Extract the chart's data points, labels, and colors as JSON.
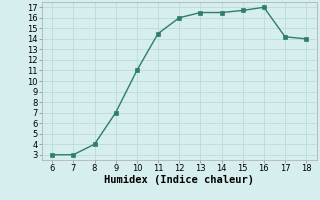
{
  "x": [
    6,
    7,
    8,
    9,
    10,
    11,
    12,
    13,
    14,
    15,
    16,
    17,
    18
  ],
  "y": [
    3,
    3,
    4,
    7,
    11,
    14.5,
    16,
    16.5,
    16.5,
    16.7,
    17,
    14.2,
    14
  ],
  "line_color": "#2e7d6e",
  "marker": "s",
  "marker_size": 2.5,
  "bg_color": "#d6eeee",
  "grid_color": "#b8d8d8",
  "xlabel": "Humidex (Indice chaleur)",
  "xlim": [
    5.5,
    18.5
  ],
  "ylim": [
    2.5,
    17.5
  ],
  "xticks": [
    6,
    7,
    8,
    9,
    10,
    11,
    12,
    13,
    14,
    15,
    16,
    17,
    18
  ],
  "yticks": [
    3,
    4,
    5,
    6,
    7,
    8,
    9,
    10,
    11,
    12,
    13,
    14,
    15,
    16,
    17
  ],
  "tick_fontsize": 6,
  "xlabel_fontsize": 7.5,
  "linewidth": 1.0
}
